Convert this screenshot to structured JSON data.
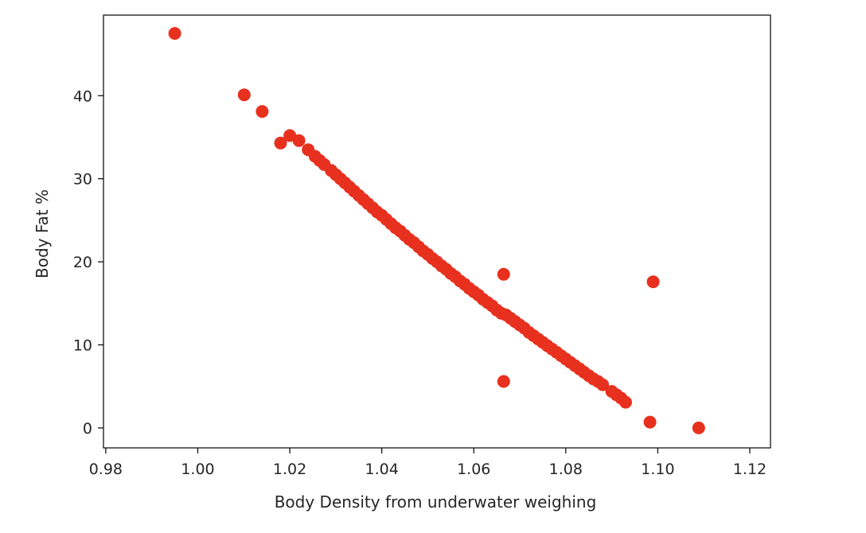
{
  "chart_data": {
    "type": "scatter",
    "title": "",
    "xlabel": "Body Density from underwater weighing",
    "ylabel": "Body Fat %",
    "xlim": [
      0.9795,
      1.1245
    ],
    "ylim": [
      -2.4,
      49.7
    ],
    "xticks": [
      0.98,
      1.0,
      1.02,
      1.04,
      1.06,
      1.08,
      1.1,
      1.12
    ],
    "xtick_labels": [
      "0.98",
      "1.00",
      "1.02",
      "1.04",
      "1.06",
      "1.08",
      "1.10",
      "1.12"
    ],
    "yticks": [
      0,
      10,
      20,
      30,
      40
    ],
    "ytick_labels": [
      "0",
      "10",
      "20",
      "30",
      "40"
    ],
    "grid": false,
    "point_color": "#e8301f",
    "x": [
      0.995,
      1.0101,
      1.014,
      1.018,
      1.02,
      1.022,
      1.024,
      1.0255,
      1.0265,
      1.0275,
      1.029,
      1.03,
      1.031,
      1.032,
      1.033,
      1.034,
      1.035,
      1.036,
      1.037,
      1.038,
      1.039,
      1.04,
      1.041,
      1.042,
      1.043,
      1.044,
      1.045,
      1.046,
      1.047,
      1.048,
      1.049,
      1.05,
      1.051,
      1.052,
      1.053,
      1.054,
      1.055,
      1.056,
      1.057,
      1.058,
      1.059,
      1.06,
      1.061,
      1.062,
      1.063,
      1.064,
      1.065,
      1.066,
      1.0665,
      1.0665,
      1.067,
      1.068,
      1.069,
      1.07,
      1.071,
      1.072,
      1.073,
      1.074,
      1.075,
      1.076,
      1.077,
      1.078,
      1.079,
      1.08,
      1.081,
      1.082,
      1.083,
      1.084,
      1.085,
      1.086,
      1.087,
      1.088,
      1.09,
      1.091,
      1.092,
      1.093,
      1.0983,
      1.099,
      1.1089
    ],
    "y": [
      47.5,
      40.1,
      38.1,
      34.3,
      35.2,
      34.6,
      33.5,
      32.7,
      32.2,
      31.7,
      31.0,
      30.5,
      30.0,
      29.5,
      29.0,
      28.5,
      28.0,
      27.5,
      27.0,
      26.5,
      26.0,
      25.6,
      25.1,
      24.6,
      24.1,
      23.7,
      23.2,
      22.7,
      22.3,
      21.8,
      21.3,
      20.9,
      20.4,
      20.0,
      19.5,
      19.1,
      18.6,
      18.2,
      17.7,
      17.3,
      16.8,
      16.4,
      16.0,
      15.5,
      15.1,
      14.7,
      14.2,
      13.8,
      18.5,
      5.6,
      13.6,
      13.2,
      12.8,
      12.4,
      12.0,
      11.5,
      11.1,
      10.7,
      10.3,
      9.9,
      9.5,
      9.1,
      8.7,
      8.3,
      7.9,
      7.5,
      7.1,
      6.7,
      6.3,
      5.9,
      5.6,
      5.2,
      4.4,
      4.0,
      3.6,
      3.1,
      0.7,
      17.6,
      0.0
    ]
  }
}
